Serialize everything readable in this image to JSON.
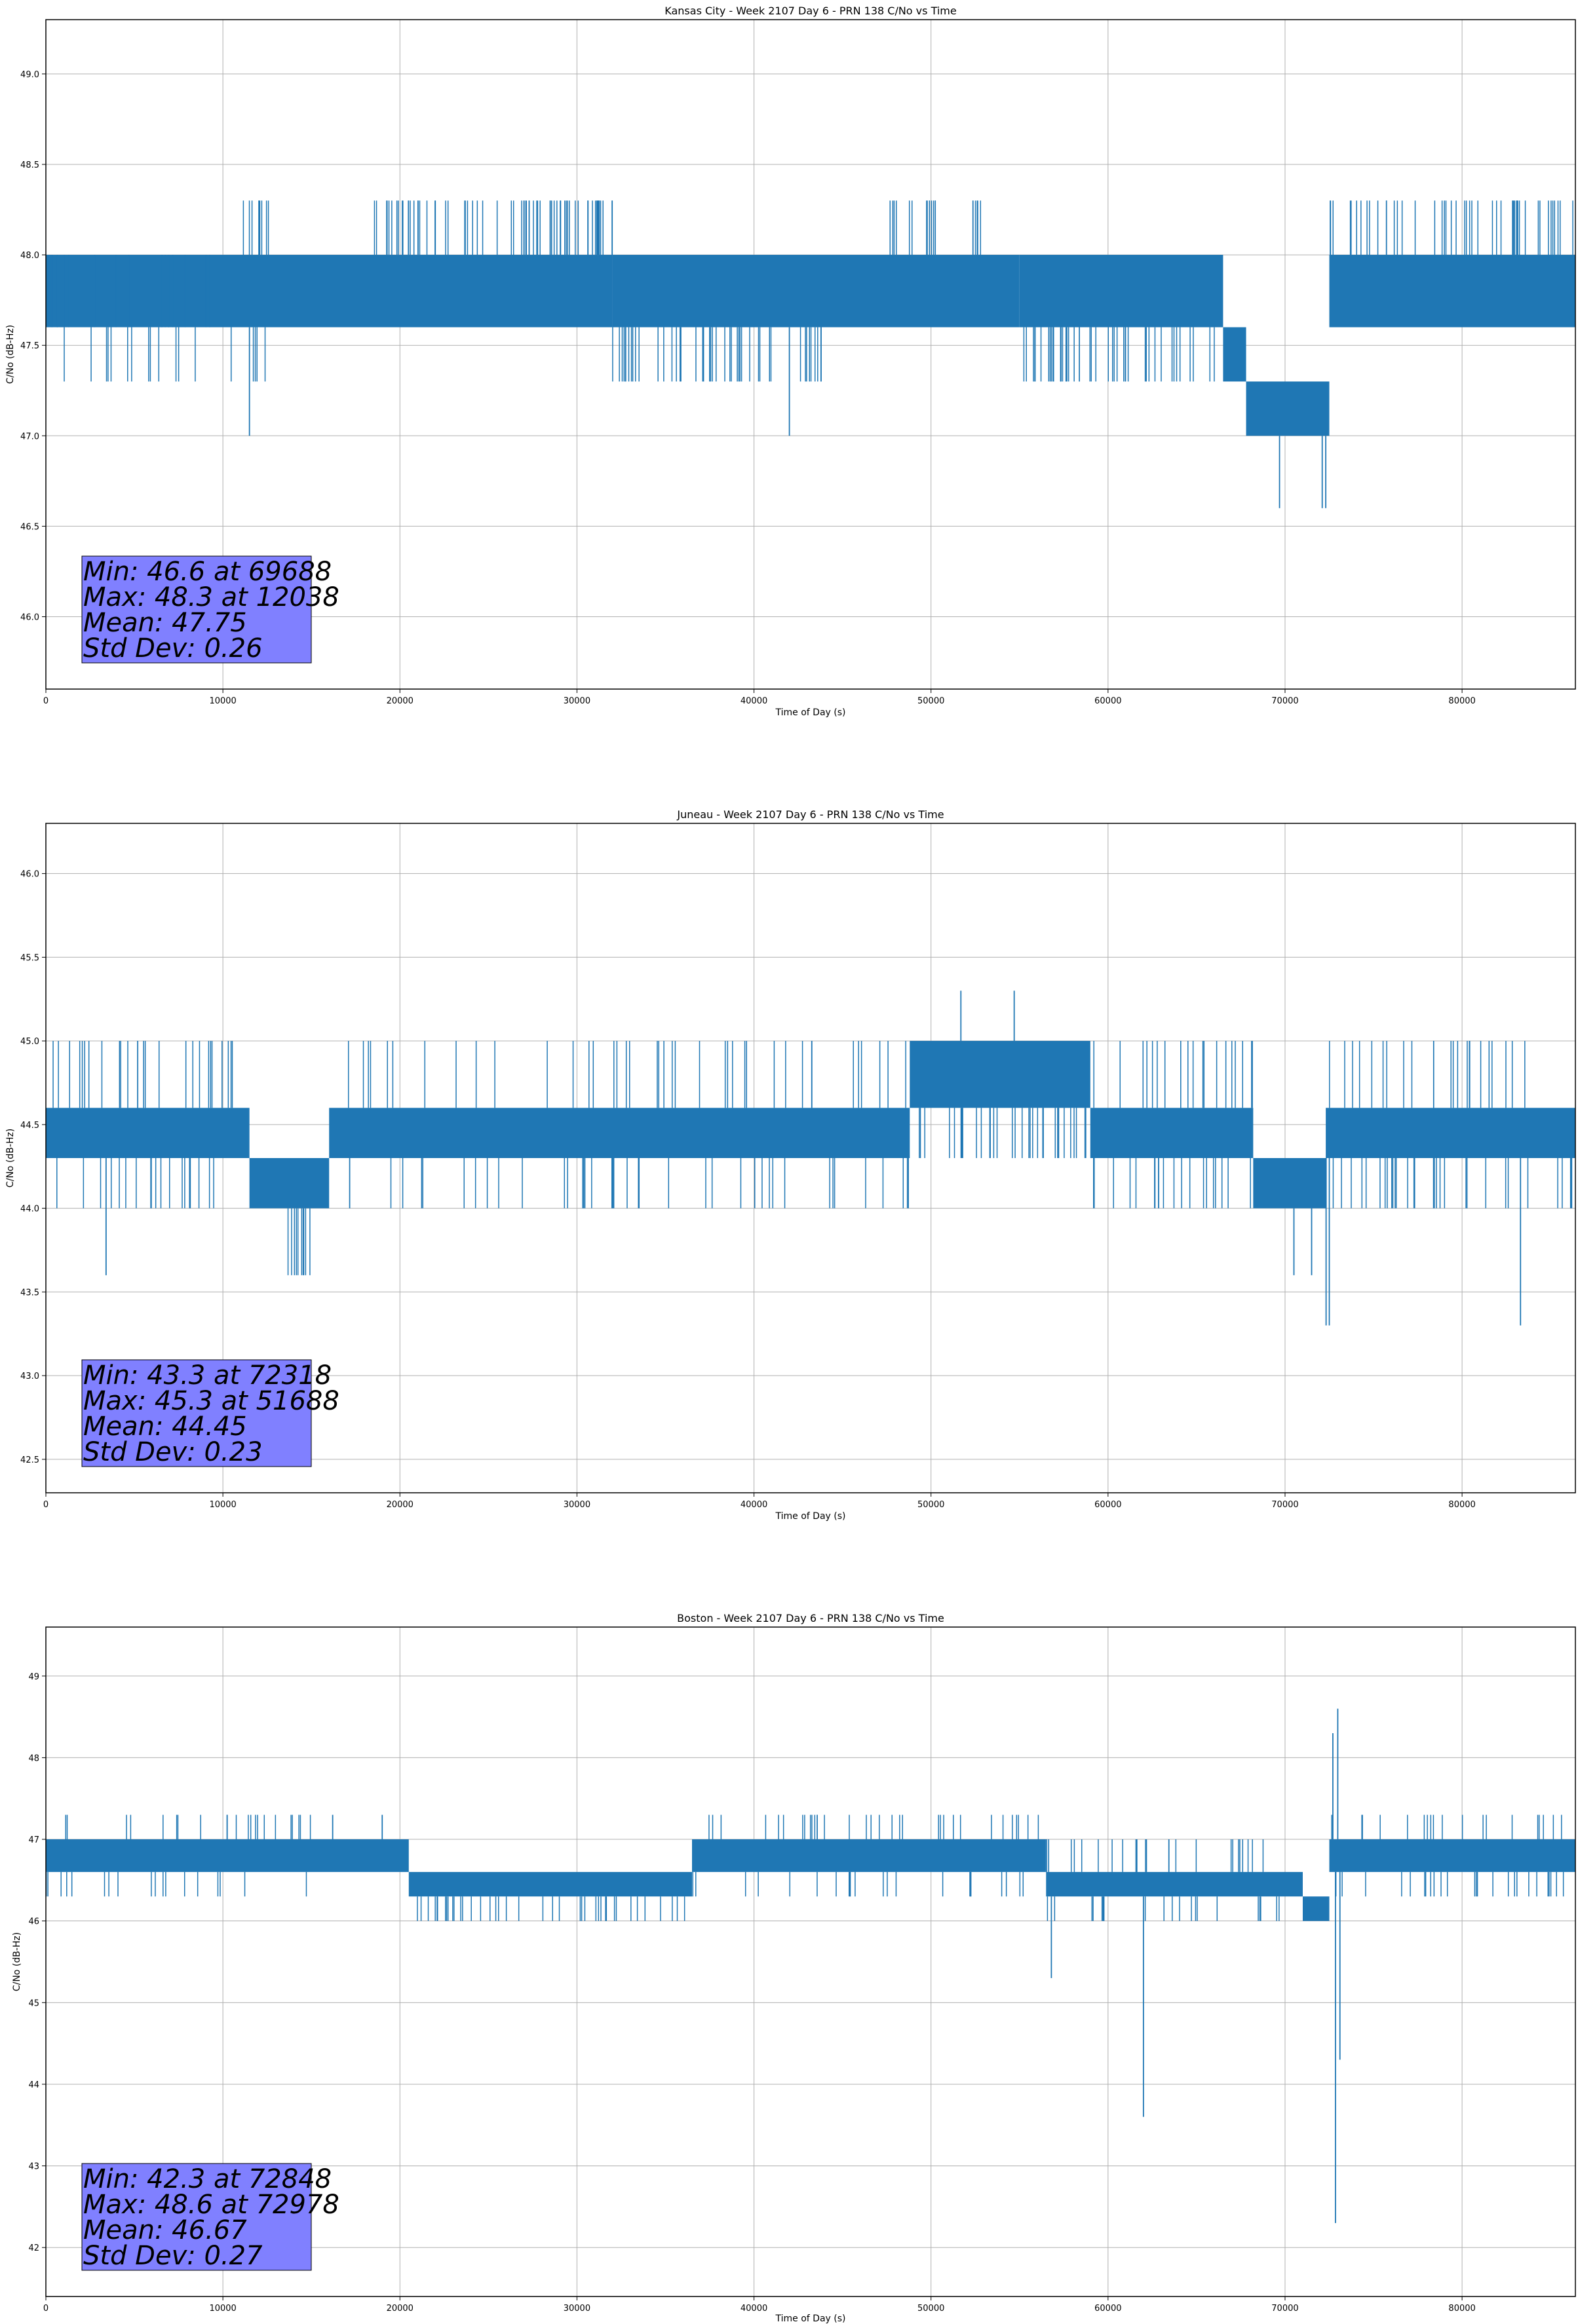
{
  "chart_data": [
    {
      "type": "line",
      "title": "Kansas City - Week 2107 Day 6 - PRN 138 C/No vs Time",
      "xlabel": "Time of Day (s)",
      "ylabel": "C/No (dB-Hz)",
      "xlim": [
        0,
        86400
      ],
      "ylim": [
        45.6,
        49.3
      ],
      "xticks": [
        0,
        10000,
        20000,
        30000,
        40000,
        50000,
        60000,
        70000,
        80000
      ],
      "xtick_labels": [
        "0",
        "10000",
        "20000",
        "30000",
        "40000",
        "50000",
        "60000",
        "70000",
        "80000"
      ],
      "yticks": [
        46.0,
        46.5,
        47.0,
        47.5,
        48.0,
        48.5,
        49.0
      ],
      "ytick_labels": [
        "46.0",
        "46.5",
        "47.0",
        "47.5",
        "48.0",
        "48.5",
        "49.0"
      ],
      "grid": true,
      "series_color": "#1f77b4",
      "bands": [
        {
          "x0": 0,
          "x1": 32000,
          "lo": 47.6,
          "hi": 48.0
        },
        {
          "x0": 32000,
          "x1": 55000,
          "lo": 47.6,
          "hi": 48.0
        },
        {
          "x0": 55000,
          "x1": 66500,
          "lo": 47.6,
          "hi": 48.0
        },
        {
          "x0": 66500,
          "x1": 67800,
          "lo": 47.3,
          "hi": 47.6
        },
        {
          "x0": 67800,
          "x1": 72500,
          "lo": 47.0,
          "hi": 47.3
        },
        {
          "x0": 72500,
          "x1": 86400,
          "lo": 47.6,
          "hi": 48.0
        }
      ],
      "spike_segments": [
        {
          "x0": 0,
          "x1": 10500,
          "values": [
            47.3,
            48.0,
            47.6
          ],
          "count": 45
        },
        {
          "x0": 11000,
          "x1": 13000,
          "values": [
            48.3,
            47.3
          ],
          "count": 12
        },
        {
          "x0": 18500,
          "x1": 32000,
          "values": [
            48.3
          ],
          "count": 70
        },
        {
          "x0": 32000,
          "x1": 44000,
          "values": [
            47.3
          ],
          "count": 45
        },
        {
          "x0": 47500,
          "x1": 53000,
          "values": [
            48.3
          ],
          "count": 20
        },
        {
          "x0": 55000,
          "x1": 66000,
          "values": [
            47.3
          ],
          "count": 45
        },
        {
          "x0": 72500,
          "x1": 86400,
          "values": [
            48.3
          ],
          "count": 50
        }
      ],
      "spikes": [
        {
          "x": 11500,
          "y": 47.0
        },
        {
          "x": 42000,
          "y": 47.0
        },
        {
          "x": 69688,
          "y": 46.6
        },
        {
          "x": 72100,
          "y": 46.6
        },
        {
          "x": 72300,
          "y": 46.6
        },
        {
          "x": 12038,
          "y": 48.3
        }
      ],
      "stats": {
        "min": "Min: 46.6 at 69688",
        "max": "Max: 48.3 at 12038",
        "mean": "Mean: 47.75",
        "std": "Std Dev: 0.26",
        "box_color": "#8080ff"
      }
    },
    {
      "type": "line",
      "title": "Juneau - Week 2107 Day 6 - PRN 138 C/No vs Time",
      "xlabel": "Time of Day (s)",
      "ylabel": "C/No (dB-Hz)",
      "xlim": [
        0,
        86400
      ],
      "ylim": [
        42.3,
        46.3
      ],
      "xticks": [
        0,
        10000,
        20000,
        30000,
        40000,
        50000,
        60000,
        70000,
        80000
      ],
      "xtick_labels": [
        "0",
        "10000",
        "20000",
        "30000",
        "40000",
        "50000",
        "60000",
        "70000",
        "80000"
      ],
      "yticks": [
        42.5,
        43.0,
        43.5,
        44.0,
        44.5,
        45.0,
        45.5,
        46.0
      ],
      "ytick_labels": [
        "42.5",
        "43.0",
        "43.5",
        "44.0",
        "44.5",
        "45.0",
        "45.5",
        "46.0"
      ],
      "grid": true,
      "series_color": "#1f77b4",
      "bands": [
        {
          "x0": 0,
          "x1": 11500,
          "lo": 44.3,
          "hi": 44.6
        },
        {
          "x0": 11500,
          "x1": 16000,
          "lo": 44.0,
          "hi": 44.3
        },
        {
          "x0": 16000,
          "x1": 48800,
          "lo": 44.3,
          "hi": 44.6
        },
        {
          "x0": 48800,
          "x1": 59000,
          "lo": 44.6,
          "hi": 45.0
        },
        {
          "x0": 59000,
          "x1": 68200,
          "lo": 44.3,
          "hi": 44.6
        },
        {
          "x0": 68200,
          "x1": 72300,
          "lo": 44.0,
          "hi": 44.3
        },
        {
          "x0": 72300,
          "x1": 86400,
          "lo": 44.3,
          "hi": 44.6
        }
      ],
      "spike_segments": [
        {
          "x0": 0,
          "x1": 11500,
          "values": [
            44.0,
            45.0
          ],
          "count": 45
        },
        {
          "x0": 13500,
          "x1": 15000,
          "values": [
            43.6
          ],
          "count": 10
        },
        {
          "x0": 16000,
          "x1": 48800,
          "values": [
            45.0,
            44.0
          ],
          "count": 80
        },
        {
          "x0": 48800,
          "x1": 59000,
          "values": [
            44.3
          ],
          "count": 35
        },
        {
          "x0": 59000,
          "x1": 68200,
          "values": [
            45.0,
            44.0
          ],
          "count": 40
        },
        {
          "x0": 72300,
          "x1": 86400,
          "values": [
            45.0,
            44.0
          ],
          "count": 55
        }
      ],
      "spikes": [
        {
          "x": 3400,
          "y": 43.6
        },
        {
          "x": 70500,
          "y": 43.6
        },
        {
          "x": 71500,
          "y": 43.6
        },
        {
          "x": 72318,
          "y": 43.3
        },
        {
          "x": 72500,
          "y": 43.3
        },
        {
          "x": 83300,
          "y": 43.3
        },
        {
          "x": 51688,
          "y": 45.3
        },
        {
          "x": 54700,
          "y": 45.3
        }
      ],
      "stats": {
        "min": "Min: 43.3 at 72318",
        "max": "Max: 45.3 at 51688",
        "mean": "Mean: 44.45",
        "std": "Std Dev: 0.23",
        "box_color": "#8080ff"
      }
    },
    {
      "type": "line",
      "title": "Boston - Week 2107 Day 6 - PRN 138 C/No vs Time",
      "xlabel": "Time of Day (s)",
      "ylabel": "C/No (dB-Hz)",
      "xlim": [
        0,
        86400
      ],
      "ylim": [
        41.4,
        49.6
      ],
      "xticks": [
        0,
        10000,
        20000,
        30000,
        40000,
        50000,
        60000,
        70000,
        80000
      ],
      "xtick_labels": [
        "0",
        "10000",
        "20000",
        "30000",
        "40000",
        "50000",
        "60000",
        "70000",
        "80000"
      ],
      "yticks": [
        42,
        43,
        44,
        45,
        46,
        47,
        48,
        49
      ],
      "ytick_labels": [
        "42",
        "43",
        "44",
        "45",
        "46",
        "47",
        "48",
        "49"
      ],
      "grid": true,
      "series_color": "#1f77b4",
      "bands": [
        {
          "x0": 0,
          "x1": 20500,
          "lo": 46.6,
          "hi": 47.0
        },
        {
          "x0": 20500,
          "x1": 36500,
          "lo": 46.3,
          "hi": 46.6
        },
        {
          "x0": 36500,
          "x1": 56500,
          "lo": 46.6,
          "hi": 47.0
        },
        {
          "x0": 56500,
          "x1": 71000,
          "lo": 46.3,
          "hi": 46.6
        },
        {
          "x0": 71000,
          "x1": 72500,
          "lo": 46.0,
          "hi": 46.3
        },
        {
          "x0": 72500,
          "x1": 86400,
          "lo": 46.6,
          "hi": 47.0
        }
      ],
      "spike_segments": [
        {
          "x0": 0,
          "x1": 15000,
          "values": [
            46.3,
            47.3
          ],
          "count": 40
        },
        {
          "x0": 20500,
          "x1": 36500,
          "values": [
            46.0
          ],
          "count": 40
        },
        {
          "x0": 36500,
          "x1": 56500,
          "values": [
            47.3,
            46.3
          ],
          "count": 55
        },
        {
          "x0": 56500,
          "x1": 71000,
          "values": [
            46.0,
            47.0
          ],
          "count": 45
        },
        {
          "x0": 72500,
          "x1": 86400,
          "values": [
            47.3,
            46.3
          ],
          "count": 45
        }
      ],
      "spikes": [
        {
          "x": 56800,
          "y": 45.3
        },
        {
          "x": 62000,
          "y": 43.6
        },
        {
          "x": 72848,
          "y": 42.3
        },
        {
          "x": 72978,
          "y": 48.6
        },
        {
          "x": 72700,
          "y": 48.3
        },
        {
          "x": 73100,
          "y": 44.3
        },
        {
          "x": 16200,
          "y": 47.3
        },
        {
          "x": 19000,
          "y": 47.3
        }
      ],
      "stats": {
        "min": "Min: 42.3 at 72848",
        "max": "Max: 48.6 at 72978",
        "mean": "Mean: 46.67",
        "std": "Std Dev: 0.27",
        "box_color": "#8080ff"
      }
    }
  ]
}
